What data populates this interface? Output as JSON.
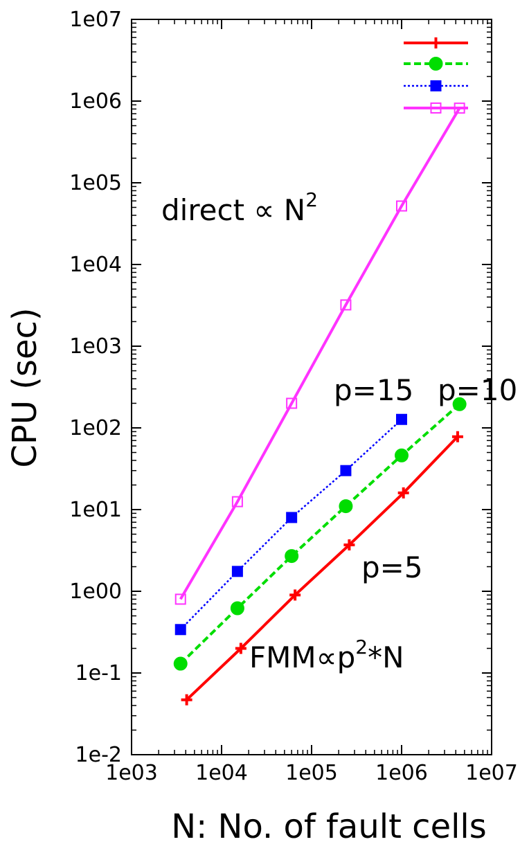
{
  "chart_data": {
    "type": "line",
    "xlabel": "N: No. of fault cells",
    "ylabel": "CPU (sec)",
    "xscale": "log",
    "yscale": "log",
    "xlim": [
      1000,
      10000000
    ],
    "ylim": [
      0.01,
      10000000
    ],
    "x_ticks": [
      {
        "value": 1000,
        "label": "1e03"
      },
      {
        "value": 10000,
        "label": "1e04"
      },
      {
        "value": 100000,
        "label": "1e05"
      },
      {
        "value": 1000000,
        "label": "1e06"
      },
      {
        "value": 10000000,
        "label": "1e07"
      }
    ],
    "y_ticks": [
      {
        "value": 0.01,
        "label": "1e-2"
      },
      {
        "value": 0.1,
        "label": "1e-1"
      },
      {
        "value": 1,
        "label": "1e00"
      },
      {
        "value": 10,
        "label": "1e01"
      },
      {
        "value": 100,
        "label": "1e02"
      },
      {
        "value": 1000,
        "label": "1e03"
      },
      {
        "value": 10000,
        "label": "1e04"
      },
      {
        "value": 100000,
        "label": "1e05"
      },
      {
        "value": 1000000,
        "label": "1e06"
      },
      {
        "value": 10000000,
        "label": "1e07"
      }
    ],
    "legend_position": "top-right",
    "series": [
      {
        "key": "p5",
        "color": "#ff0000",
        "line": "solid",
        "marker": "plus",
        "x": [
          4096,
          16384,
          65536,
          262144,
          1048576,
          4194304
        ],
        "y": [
          0.047,
          0.2,
          0.9,
          3.7,
          16,
          78
        ]
      },
      {
        "key": "p10",
        "color": "#00dd00",
        "line": "dashed",
        "marker": "filled-circle",
        "x": [
          3500,
          15000,
          60000,
          240000,
          1000000,
          4400000
        ],
        "y": [
          0.13,
          0.62,
          2.7,
          11,
          46,
          195
        ]
      },
      {
        "key": "p15",
        "color": "#0000ff",
        "line": "dotted",
        "marker": "filled-square",
        "x": [
          3500,
          15000,
          60000,
          240000,
          1000000
        ],
        "y": [
          0.34,
          1.75,
          8,
          30,
          127
        ]
      },
      {
        "key": "direct",
        "color": "#ff33ff",
        "line": "solid",
        "marker": "open-square",
        "x": [
          3500,
          15000,
          60000,
          240000,
          1000000,
          4400000
        ],
        "y": [
          0.8,
          12.5,
          200,
          3200,
          52000,
          820000
        ]
      }
    ],
    "annotations": [
      {
        "key": "direct",
        "text": "direct ∝ N",
        "sup": "2"
      },
      {
        "key": "p15",
        "text": "p=15"
      },
      {
        "key": "p10",
        "text": "p=10"
      },
      {
        "key": "p5",
        "text": "p=5"
      },
      {
        "key": "fmm",
        "text": "FMM∝p",
        "sup": "2",
        "tail": "*N"
      }
    ]
  }
}
